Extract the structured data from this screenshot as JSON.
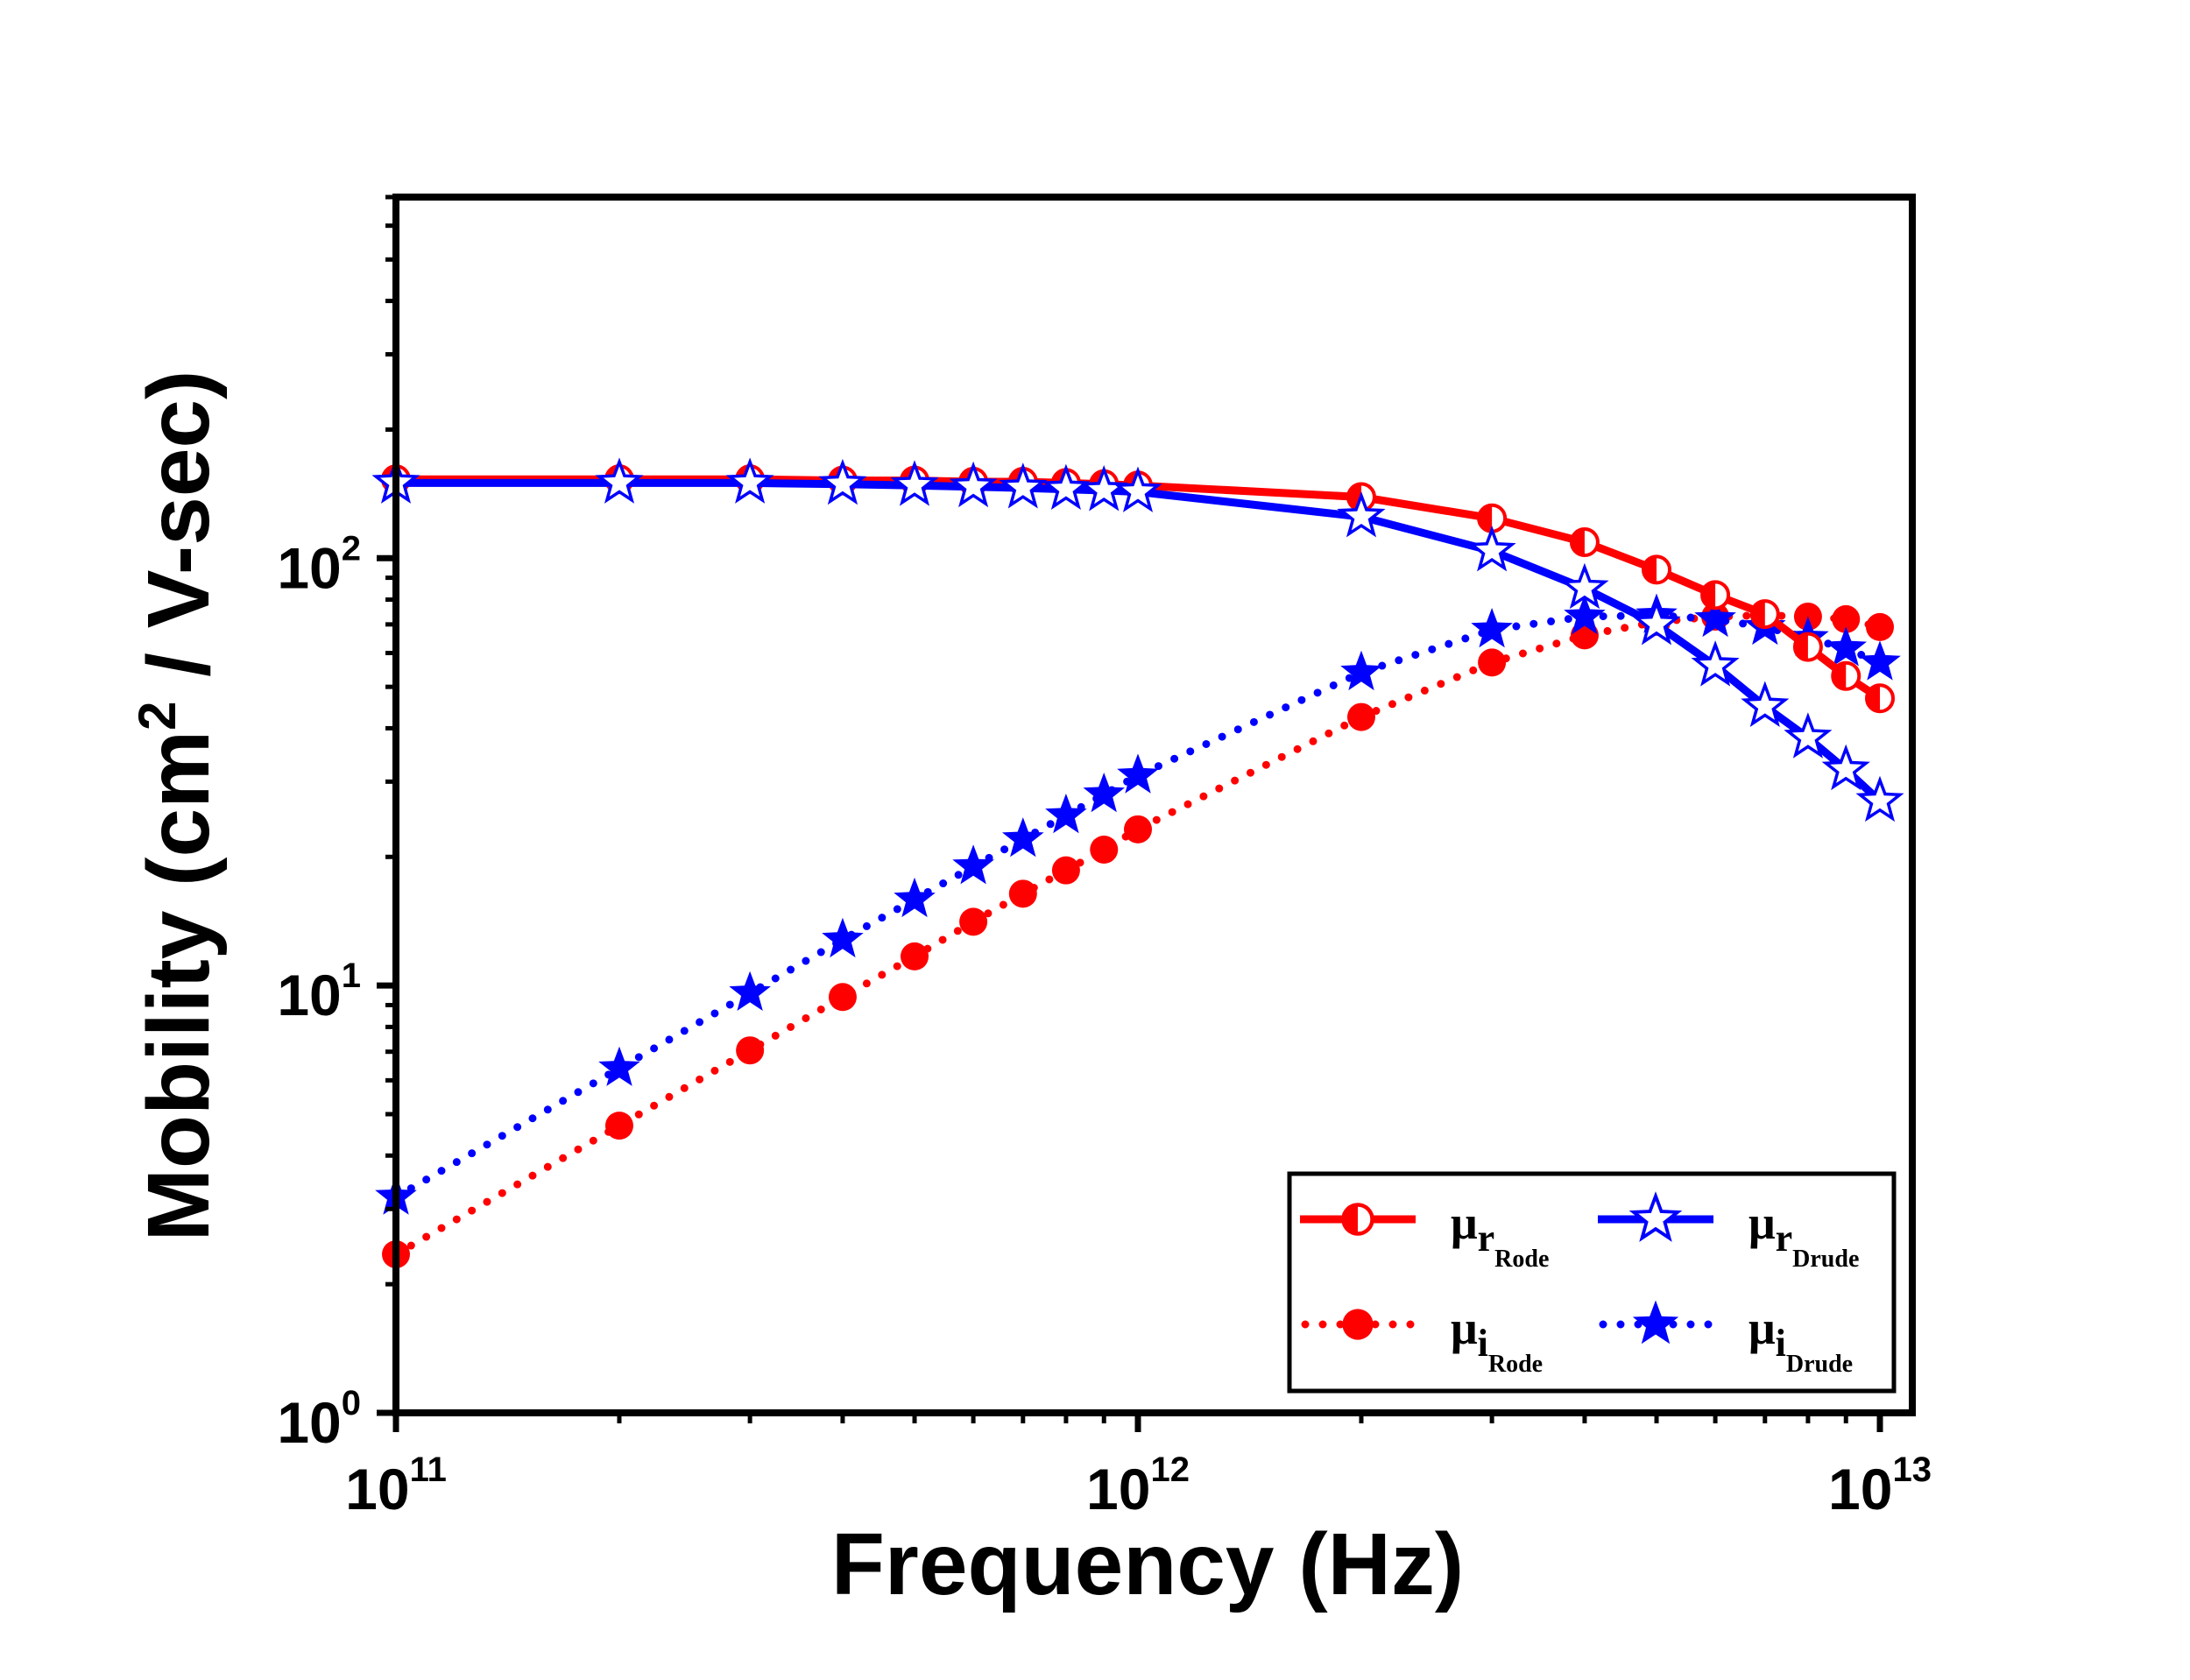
{
  "chart_data": {
    "type": "line",
    "title": "",
    "xlabel": "Frequency (Hz)",
    "ylabel": {
      "prefix": "Mobility (cm",
      "superscript": "2",
      "suffix": " / V-sec)"
    },
    "xscale": "log",
    "yscale": "log",
    "xlim": [
      100000000000.0,
      13000000000000.0
    ],
    "ylim": [
      1,
      700
    ],
    "x_ticks": [
      {
        "value": 100000000000.0,
        "base": "10",
        "exp": "11"
      },
      {
        "value": 1000000000000.0,
        "base": "10",
        "exp": "12"
      },
      {
        "value": 10000000000000.0,
        "base": "10",
        "exp": "13"
      }
    ],
    "y_ticks": [
      {
        "value": 1,
        "base": "10",
        "exp": "0"
      },
      {
        "value": 10,
        "base": "10",
        "exp": "1"
      },
      {
        "value": 100,
        "base": "10",
        "exp": "2"
      }
    ],
    "grid": false,
    "legend_position": "bottom-right",
    "series": [
      {
        "name": "mu_r_Rode",
        "legend_symbol": "μ",
        "legend_sub": "r",
        "legend_subsub": "Rode",
        "color": "#ff0000",
        "line_style": "solid",
        "marker": "half-filled-circle",
        "x": [
          100000000000.0,
          200000000000.0,
          300000000000.0,
          400000000000.0,
          500000000000.0,
          600000000000.0,
          700000000000.0,
          800000000000.0,
          900000000000.0,
          1000000000000.0,
          2000000000000.0,
          3000000000000.0,
          4000000000000.0,
          5000000000000.0,
          6000000000000.0,
          7000000000000.0,
          8000000000000.0,
          9000000000000.0,
          10000000000000.0
        ],
        "y": [
          153,
          153,
          153,
          152,
          152,
          151,
          151,
          150,
          149,
          148,
          139,
          124,
          109,
          94,
          82,
          74,
          62,
          53,
          47
        ]
      },
      {
        "name": "mu_r_Drude",
        "legend_symbol": "μ",
        "legend_sub": "r",
        "legend_subsub": "Drude",
        "color": "#0000ff",
        "line_style": "solid",
        "marker": "hollow-star",
        "x": [
          100000000000.0,
          200000000000.0,
          300000000000.0,
          400000000000.0,
          500000000000.0,
          600000000000.0,
          700000000000.0,
          800000000000.0,
          900000000000.0,
          1000000000000.0,
          2000000000000.0,
          3000000000000.0,
          4000000000000.0,
          5000000000000.0,
          6000000000000.0,
          7000000000000.0,
          8000000000000.0,
          9000000000000.0,
          10000000000000.0
        ],
        "y": [
          150,
          150,
          150,
          149,
          148,
          147,
          146,
          145,
          144,
          143,
          125,
          104,
          85,
          70,
          56,
          45,
          38,
          32,
          27
        ]
      },
      {
        "name": "mu_i_Rode",
        "legend_symbol": "μ",
        "legend_sub": "i",
        "legend_subsub": "Rode",
        "color": "#ff0000",
        "line_style": "dotted",
        "marker": "filled-circle",
        "x": [
          100000000000.0,
          200000000000.0,
          300000000000.0,
          400000000000.0,
          500000000000.0,
          600000000000.0,
          700000000000.0,
          800000000000.0,
          900000000000.0,
          1000000000000.0,
          2000000000000.0,
          3000000000000.0,
          4000000000000.0,
          5000000000000.0,
          6000000000000.0,
          7000000000000.0,
          8000000000000.0,
          9000000000000.0,
          10000000000000.0
        ],
        "y": [
          2.35,
          4.7,
          7.05,
          9.4,
          11.7,
          14.1,
          16.4,
          18.6,
          20.8,
          23.2,
          42.5,
          57,
          66,
          71,
          73,
          73.5,
          73,
          72,
          69
        ]
      },
      {
        "name": "mu_i_Drude",
        "legend_symbol": "μ",
        "legend_sub": "i",
        "legend_subsub": "Drude",
        "color": "#0000ff",
        "line_style": "dotted",
        "marker": "filled-star",
        "x": [
          100000000000.0,
          200000000000.0,
          300000000000.0,
          400000000000.0,
          500000000000.0,
          600000000000.0,
          700000000000.0,
          800000000000.0,
          900000000000.0,
          1000000000000.0,
          2000000000000.0,
          3000000000000.0,
          4000000000000.0,
          5000000000000.0,
          6000000000000.0,
          7000000000000.0,
          8000000000000.0,
          9000000000000.0,
          10000000000000.0
        ],
        "y": [
          3.2,
          6.4,
          9.6,
          12.8,
          15.9,
          19,
          22,
          25,
          28,
          31,
          54,
          68,
          73,
          73.5,
          72,
          69,
          65,
          61.5,
          57
        ]
      }
    ]
  }
}
